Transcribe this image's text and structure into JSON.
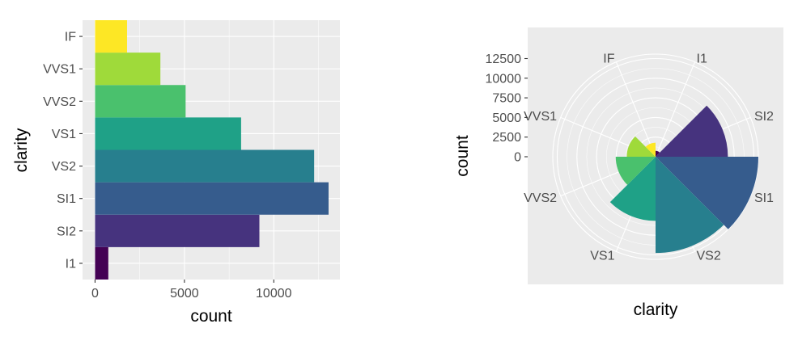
{
  "chart_data": [
    {
      "type": "bar",
      "orientation": "horizontal",
      "categories": [
        "I1",
        "SI2",
        "SI1",
        "VS2",
        "VS1",
        "VVS2",
        "VVS1",
        "IF"
      ],
      "values": [
        741,
        9194,
        13065,
        12258,
        8171,
        5066,
        3655,
        1790
      ],
      "colors": [
        "#440154",
        "#46337E",
        "#365C8D",
        "#277F8E",
        "#1FA187",
        "#4AC16D",
        "#9FDA3A",
        "#FDE725"
      ],
      "xlabel": "count",
      "ylabel": "clarity",
      "x_ticks": [
        0,
        5000,
        10000
      ],
      "x_tick_labels": [
        "0",
        "5000",
        "10000"
      ],
      "xlim": [
        -700,
        13700
      ],
      "grid": true
    },
    {
      "type": "bar",
      "coordinate_system": "polar",
      "categories": [
        "I1",
        "SI2",
        "SI1",
        "VS2",
        "VS1",
        "VVS2",
        "VVS1",
        "IF"
      ],
      "values": [
        741,
        9194,
        13065,
        12258,
        8171,
        5066,
        3655,
        1790
      ],
      "colors": [
        "#440154",
        "#46337E",
        "#365C8D",
        "#277F8E",
        "#1FA187",
        "#4AC16D",
        "#9FDA3A",
        "#FDE725"
      ],
      "xlabel": "clarity",
      "ylabel": "count",
      "r_ticks": [
        0,
        2500,
        5000,
        7500,
        10000,
        12500
      ],
      "r_tick_labels": [
        "0",
        "2500",
        "5000",
        "7500",
        "10000",
        "12500"
      ],
      "theta_labels": [
        "I1",
        "SI2",
        "SI1",
        "VS2",
        "VS1",
        "VVS2",
        "VVS1",
        "IF"
      ],
      "grid": true
    }
  ]
}
